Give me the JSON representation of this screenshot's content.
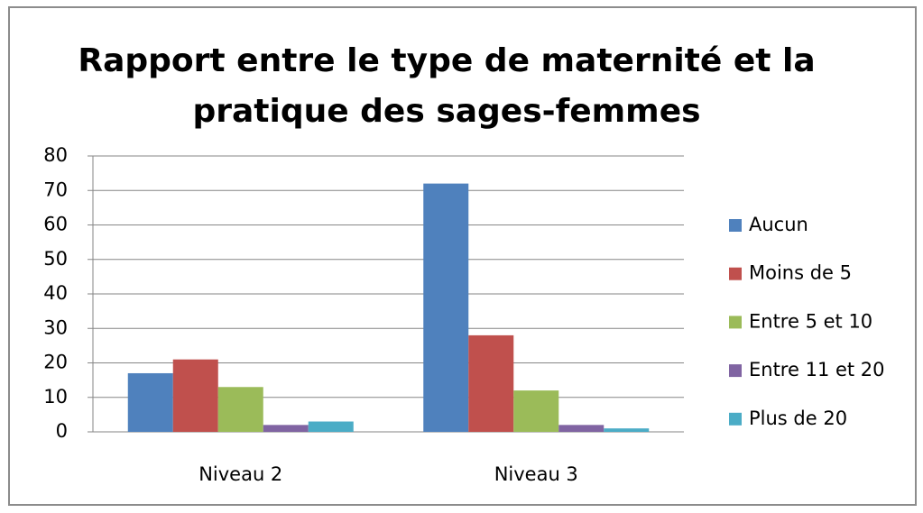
{
  "chart_data": {
    "type": "bar",
    "title": "Rapport entre le type de maternité et la\npratique des sages-femmes",
    "categories": [
      "Niveau 2",
      "Niveau 3"
    ],
    "series": [
      {
        "name": "Aucun",
        "color": "#4f81bd",
        "values": [
          17,
          72
        ]
      },
      {
        "name": "Moins de 5",
        "color": "#c0504d",
        "values": [
          21,
          28
        ]
      },
      {
        "name": "Entre 5 et 10",
        "color": "#9bbb59",
        "values": [
          13,
          12
        ]
      },
      {
        "name": "Entre 11 et 20",
        "color": "#8064a2",
        "values": [
          2,
          2
        ]
      },
      {
        "name": "Plus de 20",
        "color": "#4bacc6",
        "values": [
          3,
          1
        ]
      }
    ],
    "ylim": [
      0,
      80
    ],
    "yticks": [
      0,
      10,
      20,
      30,
      40,
      50,
      60,
      70,
      80
    ],
    "grid": true,
    "legend": "right"
  }
}
